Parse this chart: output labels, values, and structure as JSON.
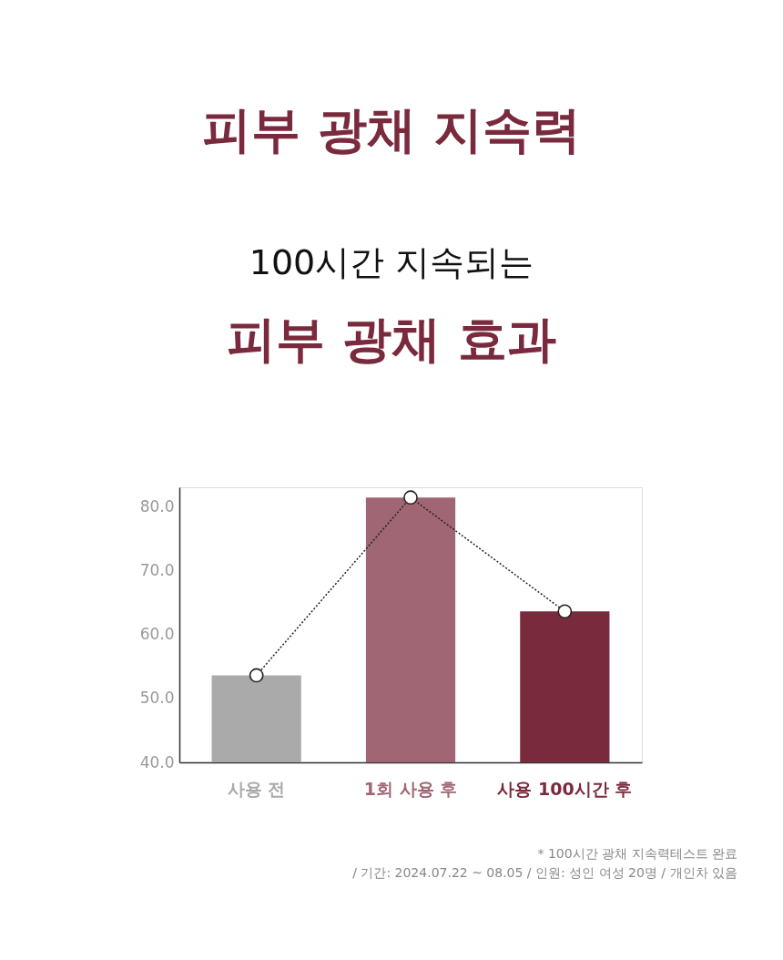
{
  "chart_data": {
    "type": "bar",
    "title": "피부 광채 지속력",
    "subtitle": "100시간 지속되는\n피부 광채 효과",
    "categories": [
      "사용 전",
      "1회 사용 후",
      "사용 100시간 후"
    ],
    "series": [
      {
        "colors": [
          "#aaaaaa",
          "#a06673",
          "#7a2a3d"
        ],
        "values": [
          53.6,
          81.4,
          63.6
        ]
      },
      {
        "type": "line",
        "color": "#222222",
        "values": [
          53.6,
          81.4,
          63.6
        ]
      }
    ],
    "ylim": [
      40,
      83
    ],
    "yticks": [
      {
        "value": 40,
        "label": "40.0"
      },
      {
        "value": 50,
        "label": "50.0"
      },
      {
        "value": 60,
        "label": "60.0"
      },
      {
        "value": 70,
        "label": "70.0"
      },
      {
        "value": 80,
        "label": "80.0"
      }
    ],
    "grid": false,
    "marker": "circle",
    "line_style": "dotted",
    "annotations": [
      "* 100시간 광채 지속력테스트 완료",
      "/ 기간: 2024.07.22 ~ 08.05 / 인원: 성인 여성 20명 / 개인차 있음"
    ]
  }
}
